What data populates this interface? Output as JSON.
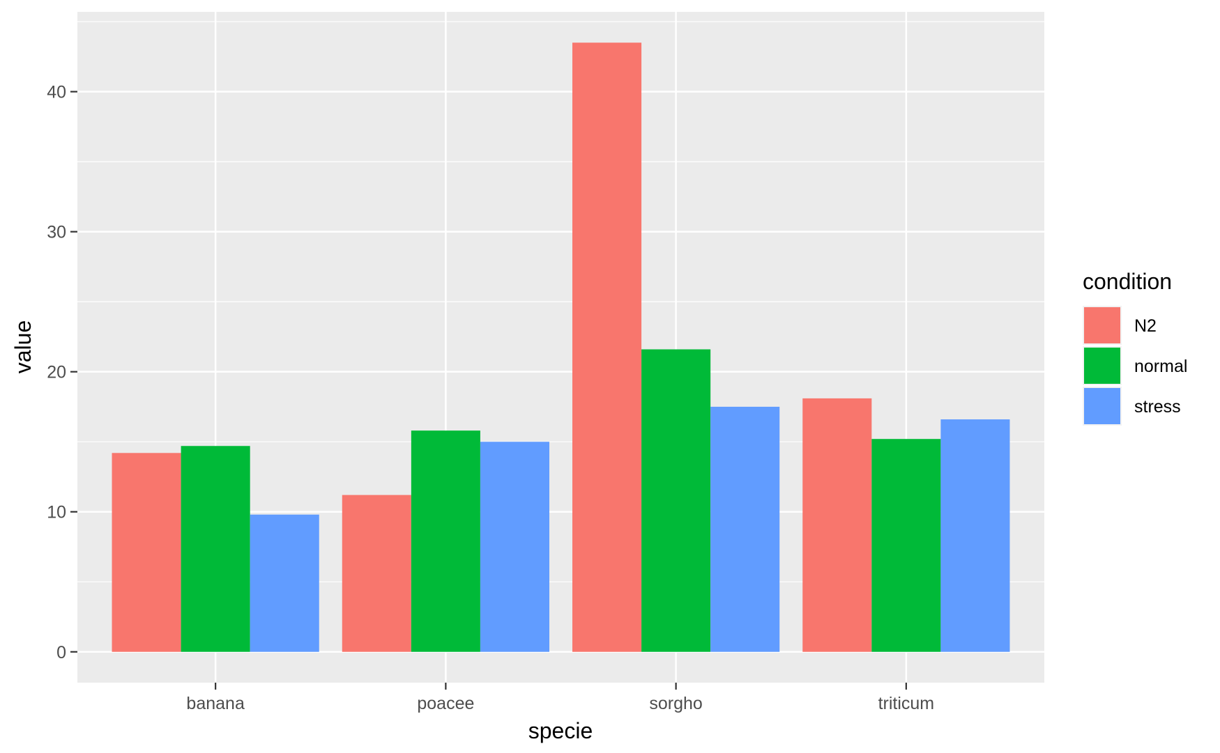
{
  "chart_data": {
    "type": "bar",
    "xlabel": "specie",
    "ylabel": "value",
    "categories": [
      "banana",
      "poacee",
      "sorgho",
      "triticum"
    ],
    "series": [
      {
        "name": "N2",
        "color": "#F8766D",
        "values": [
          14.2,
          11.2,
          43.5,
          18.1
        ]
      },
      {
        "name": "normal",
        "color": "#00BA38",
        "values": [
          14.7,
          15.8,
          21.6,
          15.2
        ]
      },
      {
        "name": "stress",
        "color": "#619CFF",
        "values": [
          9.8,
          15.0,
          17.5,
          16.6
        ]
      }
    ],
    "ylim": [
      -2.2,
      45.7
    ],
    "yticks": [
      0,
      10,
      20,
      30,
      40
    ],
    "grid": true,
    "legend": {
      "title": "condition",
      "position": "right"
    }
  }
}
